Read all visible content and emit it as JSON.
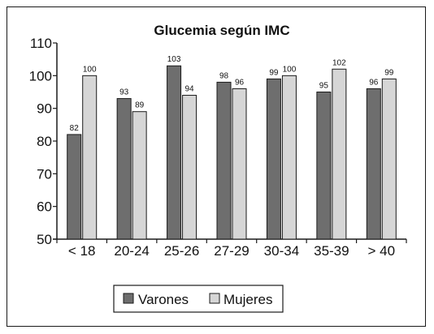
{
  "chart_data": {
    "type": "bar",
    "title": "Glucemia según IMC",
    "xlabel": "",
    "ylabel": "",
    "categories": [
      "< 18",
      "20-24",
      "25-26",
      "27-29",
      "30-34",
      "35-39",
      "> 40"
    ],
    "series": [
      {
        "name": "Varones",
        "values": [
          82,
          93,
          103,
          98,
          99,
          95,
          96
        ],
        "color": "#6e6e6e"
      },
      {
        "name": "Mujeres",
        "values": [
          100,
          89,
          94,
          96,
          100,
          102,
          99
        ],
        "color": "#d6d6d6"
      }
    ],
    "ylim": [
      50,
      110
    ],
    "yticks": [
      50,
      60,
      70,
      80,
      90,
      100,
      110
    ],
    "grid": false,
    "legend": "bottom-center"
  }
}
